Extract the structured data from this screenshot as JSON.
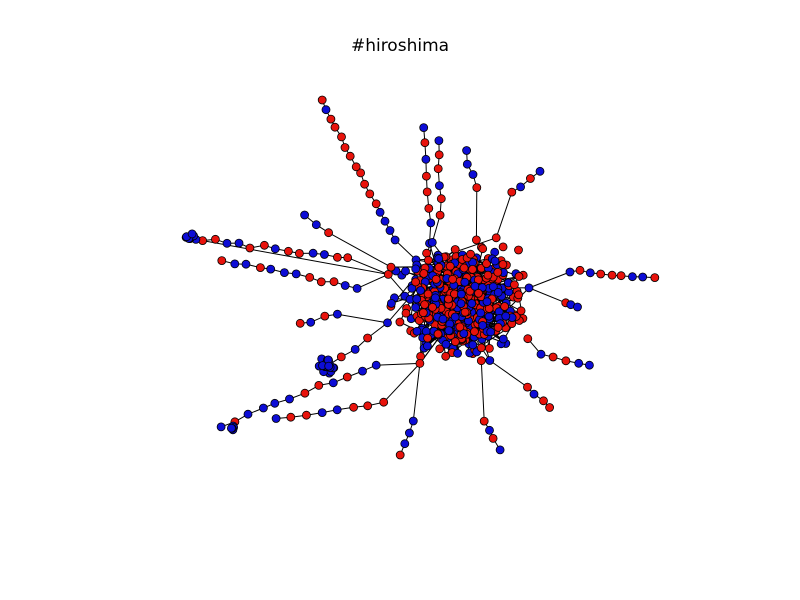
{
  "figure": {
    "title": "#hiroshima"
  },
  "colors": {
    "background": "#ffffff",
    "edge": "#000000",
    "node_red": "#e8130c",
    "node_blue": "#0d0dd6",
    "node_outline": "#000000"
  }
}
